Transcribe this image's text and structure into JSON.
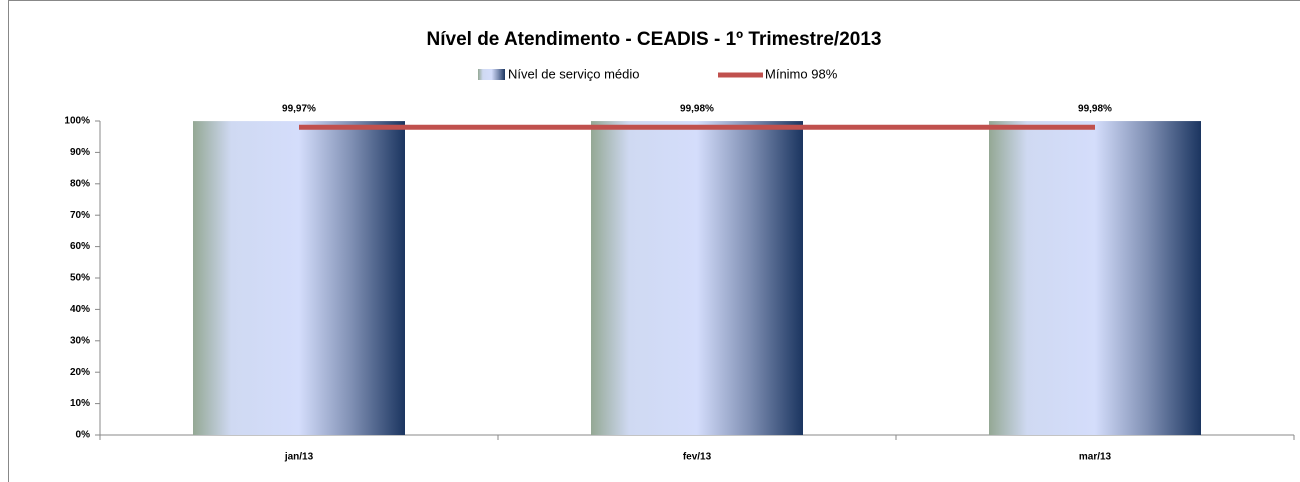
{
  "chart_data": {
    "type": "bar",
    "title": "Nível de Atendimento - CEADIS - 1º Trimestre/2013",
    "categories": [
      "jan/13",
      "fev/13",
      "mar/13"
    ],
    "series": [
      {
        "name": "Nível de serviço médio",
        "type": "bar",
        "color": "#1b3560",
        "values": [
          99.97,
          99.98,
          99.98
        ],
        "value_labels": [
          "99,97%",
          "99,98%",
          "99,98%"
        ]
      },
      {
        "name": "Mínimo 98%",
        "type": "line",
        "color": "#c0504d",
        "values": [
          98,
          98,
          98
        ]
      }
    ],
    "ylim": [
      0,
      100
    ],
    "yticks": [
      {
        "value": 0,
        "label": "0%"
      },
      {
        "value": 10,
        "label": "10%"
      },
      {
        "value": 20,
        "label": "20%"
      },
      {
        "value": 30,
        "label": "30%"
      },
      {
        "value": 40,
        "label": "40%"
      },
      {
        "value": 50,
        "label": "50%"
      },
      {
        "value": 60,
        "label": "60%"
      },
      {
        "value": 70,
        "label": "70%"
      },
      {
        "value": 80,
        "label": "80%"
      },
      {
        "value": 90,
        "label": "90%"
      },
      {
        "value": 100,
        "label": "100%"
      }
    ],
    "legend": "top",
    "grid": false
  }
}
